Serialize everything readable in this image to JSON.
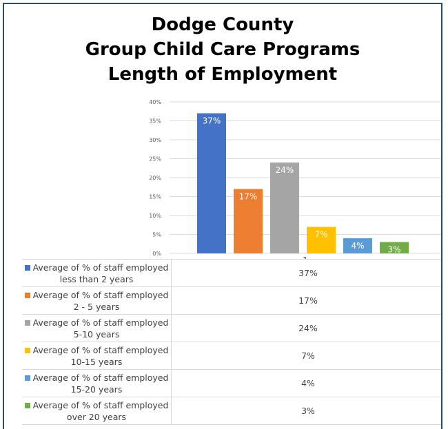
{
  "chart_data": {
    "type": "bar",
    "title_lines": [
      "Dodge County",
      "Group Child Care Programs",
      "Length of Employment"
    ],
    "categories": [
      "1"
    ],
    "yticks": [
      "0%",
      "5%",
      "10%",
      "15%",
      "20%",
      "25%",
      "30%",
      "35%",
      "40%"
    ],
    "ylim": [
      0,
      40
    ],
    "grid": true,
    "series": [
      {
        "name_line1": "Average of % of staff employed",
        "name_line2": "less than 2 years",
        "value": 37,
        "label": "37%",
        "color": "#4472c4"
      },
      {
        "name_line1": "Average of % of staff employed",
        "name_line2": "2 - 5 years",
        "value": 17,
        "label": "17%",
        "color": "#ed7d31"
      },
      {
        "name_line1": "Average of % of staff employed",
        "name_line2": "5-10 years",
        "value": 24,
        "label": "24%",
        "color": "#a5a5a5"
      },
      {
        "name_line1": "Average of % of staff employed",
        "name_line2": "10-15 years",
        "value": 7,
        "label": "7%",
        "color": "#ffc000"
      },
      {
        "name_line1": "Average of % of staff employed",
        "name_line2": "15-20 years",
        "value": 4,
        "label": "4%",
        "color": "#5b9bd5"
      },
      {
        "name_line1": "Average of % of staff employed",
        "name_line2": "over 20 years",
        "value": 3,
        "label": "3%",
        "color": "#70ad47"
      }
    ]
  }
}
